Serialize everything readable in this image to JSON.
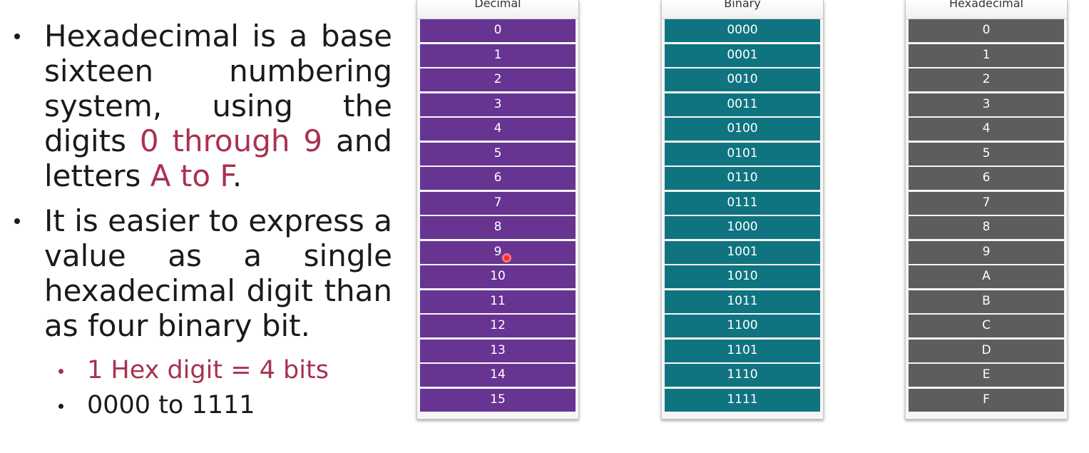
{
  "bullets": {
    "b1": {
      "text_before": "Hexadecimal is a base sixteen numbering system, using the digits ",
      "highlight_digits": "0 through 9",
      "text_middle": " and letters ",
      "highlight_letters": "A to F",
      "text_after": "."
    },
    "b2": {
      "text": "It is easier to express a value as a single hexadecimal digit than as four binary bit."
    },
    "sub": [
      "1 Hex digit = 4 bits",
      "0000 to 1111"
    ]
  },
  "tables": [
    {
      "id": "decimal",
      "header": "Decimal",
      "color": "#673492",
      "values": [
        "0",
        "1",
        "2",
        "3",
        "4",
        "5",
        "6",
        "7",
        "8",
        "9",
        "10",
        "11",
        "12",
        "13",
        "14",
        "15"
      ]
    },
    {
      "id": "binary",
      "header": "Binary",
      "color": "#0f747f",
      "values": [
        "0000",
        "0001",
        "0010",
        "0011",
        "0100",
        "0101",
        "0110",
        "0111",
        "1000",
        "1001",
        "1010",
        "1011",
        "1100",
        "1101",
        "1110",
        "1111"
      ]
    },
    {
      "id": "hexadecimal",
      "header": "Hexadecimal",
      "color": "#5e5c5d",
      "values": [
        "0",
        "1",
        "2",
        "3",
        "4",
        "5",
        "6",
        "7",
        "8",
        "9",
        "A",
        "B",
        "C",
        "D",
        "E",
        "F"
      ]
    }
  ],
  "colors": {
    "highlight": "#a8324f",
    "text": "#1a1a1a"
  }
}
